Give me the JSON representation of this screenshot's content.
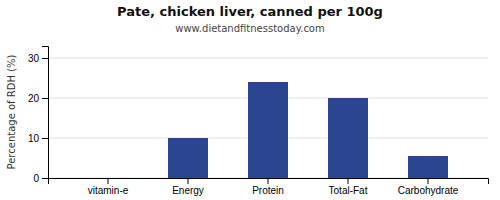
{
  "chart_data": {
    "type": "bar",
    "title": "Pate, chicken liver, canned per 100g",
    "subtitle": "www.dietandfitnesstoday.com",
    "categories": [
      "vitamin-e",
      "Energy",
      "Protein",
      "Total-Fat",
      "Carbohydrate"
    ],
    "values": [
      0,
      10,
      24,
      20,
      5.5
    ],
    "color": "#2b4590",
    "ylabel": "Percentage of RDH (%)",
    "ylim": [
      0,
      33
    ],
    "yticks": [
      0,
      10,
      20,
      30
    ],
    "grid": true
  }
}
